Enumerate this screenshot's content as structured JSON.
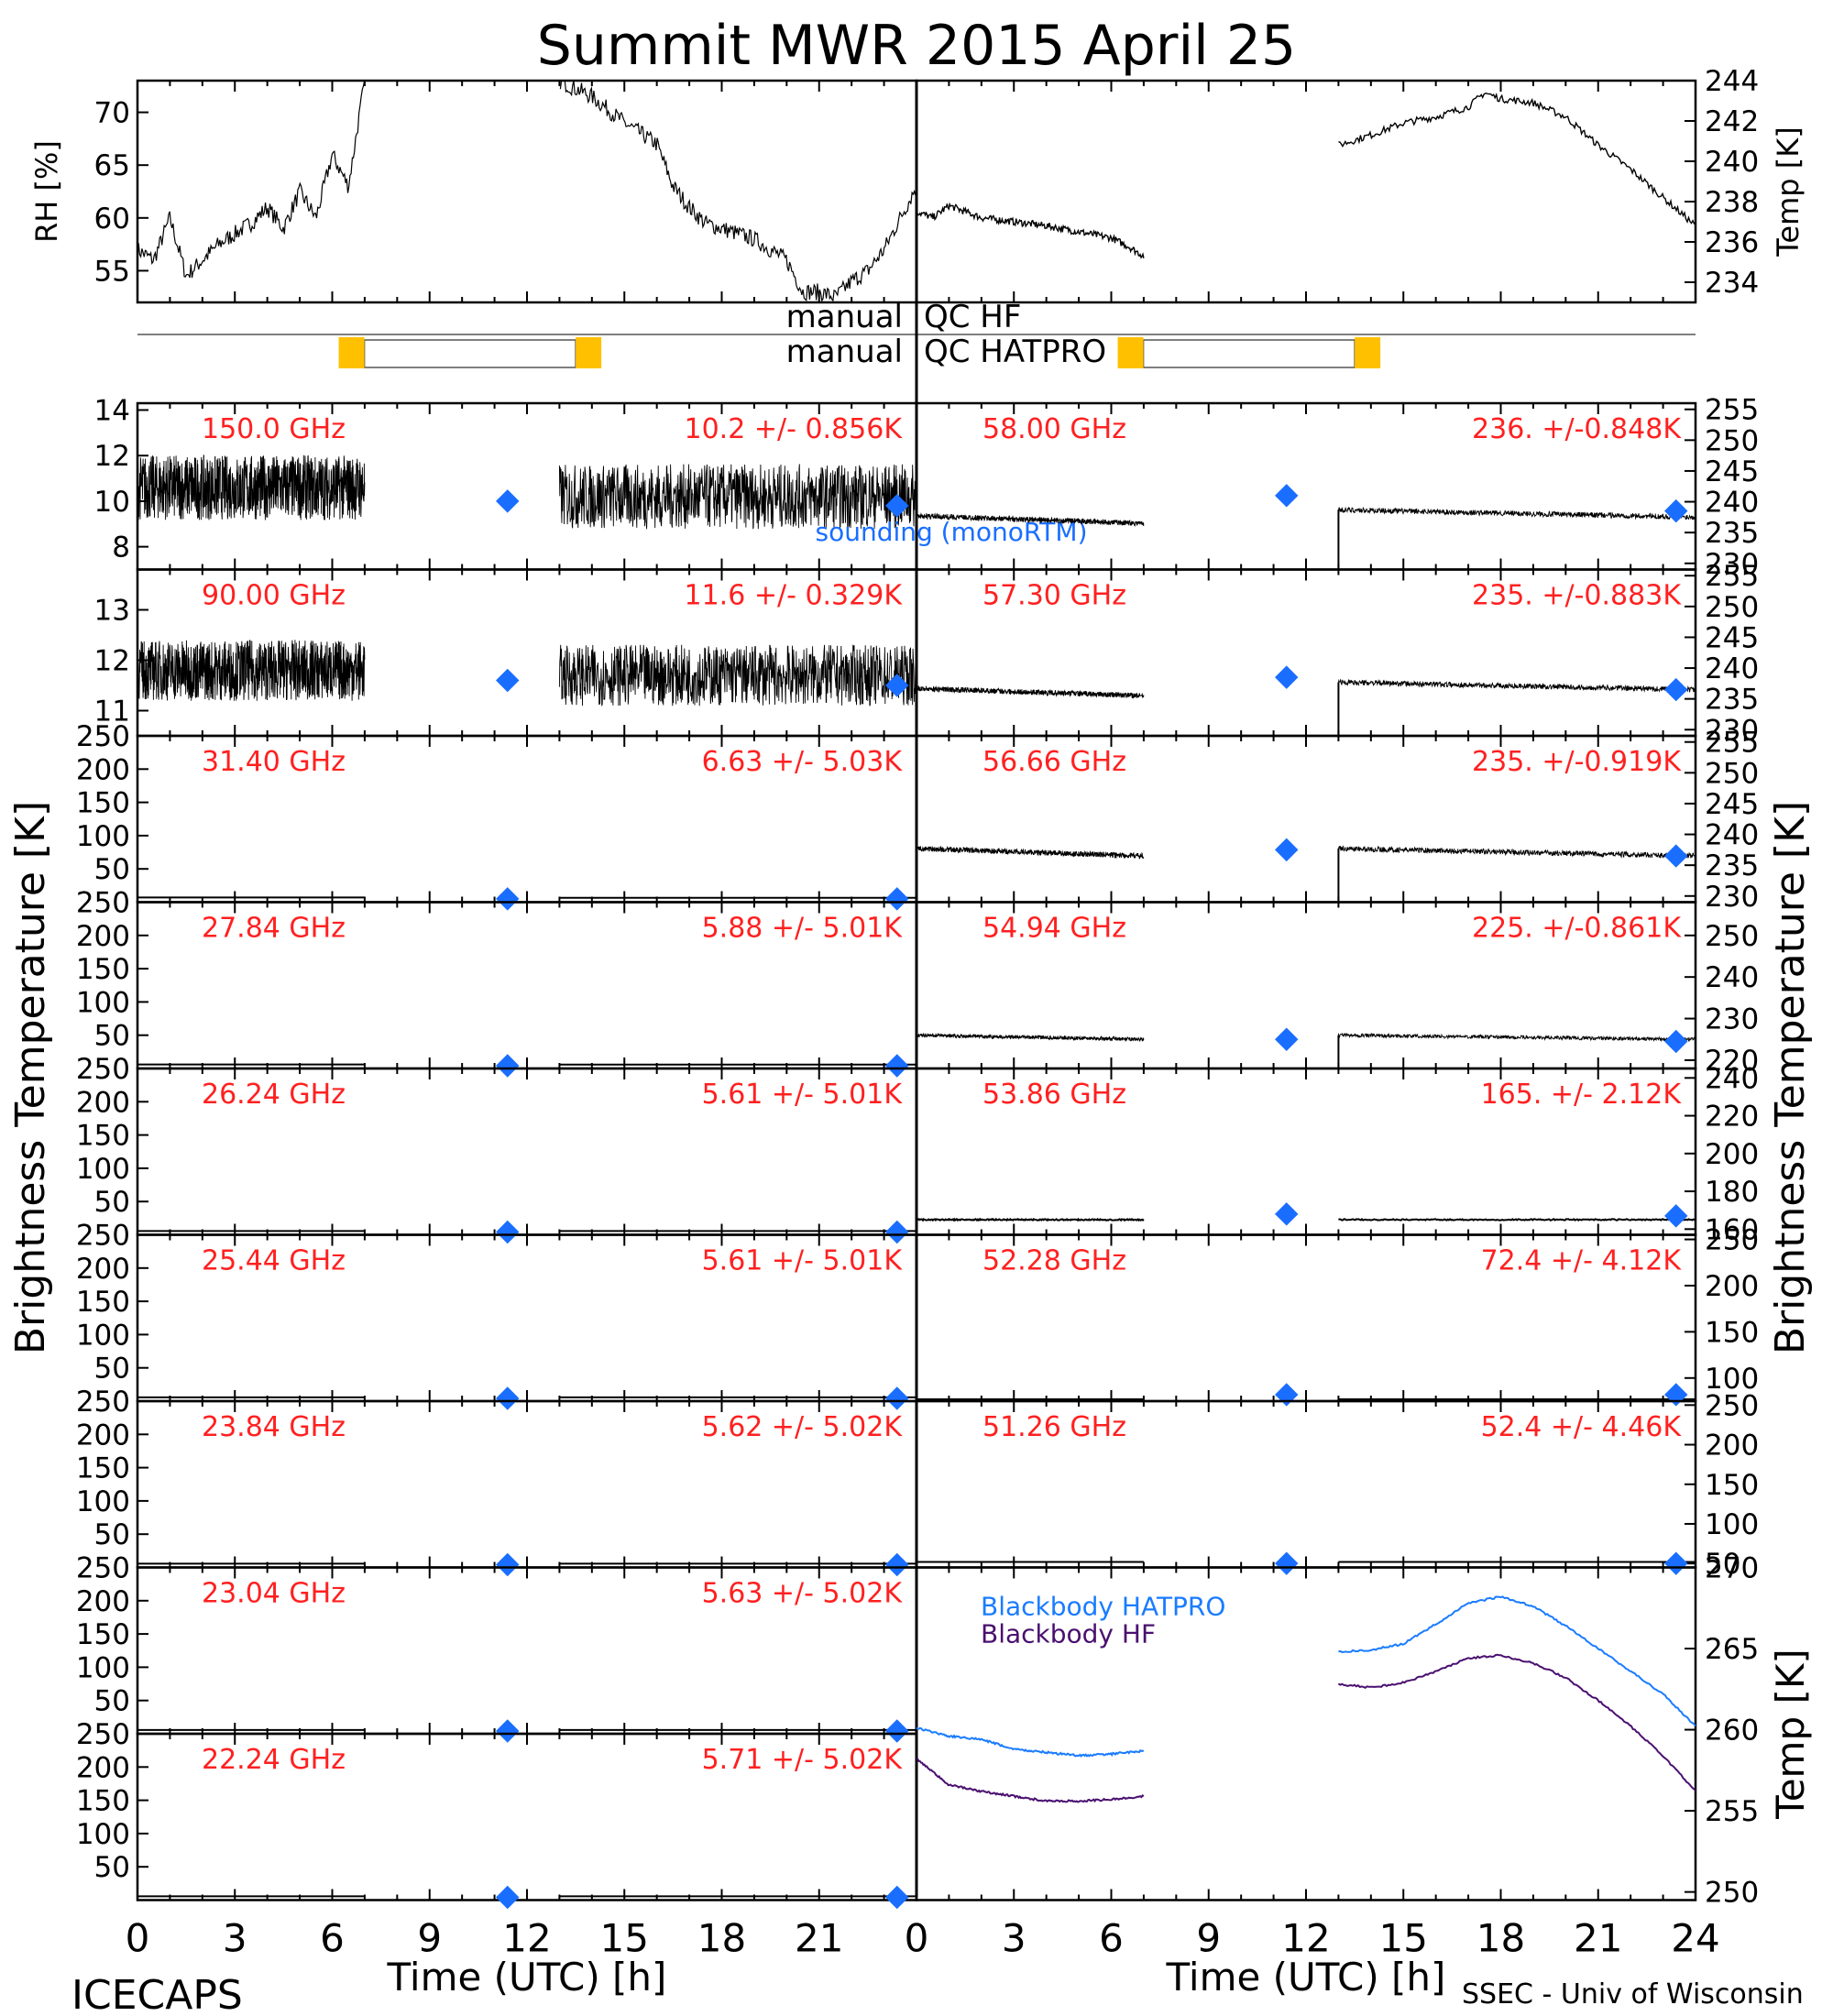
{
  "title": "Summit MWR 2015 April 25",
  "footer": {
    "left": "ICECAPS",
    "right": "SSEC - Univ of Wisconsin"
  },
  "colors": {
    "label_red": "#ff2020",
    "sounding_blue": "#1a6eff",
    "bb_hatpro": "#1a7cff",
    "bb_hf": "#4a1070",
    "qc_orange": "#ffc000",
    "trace": "#000000"
  },
  "chart_data": [
    {
      "id": "met_rh",
      "type": "line",
      "ylabel": "RH [%]",
      "ylim": [
        52,
        73
      ],
      "yticks": [
        55,
        60,
        65,
        70
      ],
      "xlim": [
        0,
        24
      ],
      "x": [
        0,
        0.5,
        1,
        1.5,
        2,
        2.5,
        3,
        3.5,
        4,
        4.5,
        5,
        5.5,
        6,
        6.5,
        7,
        13,
        14,
        15,
        16,
        16.5,
        17,
        17.5,
        18,
        19,
        20,
        20.5,
        21,
        21.5,
        22,
        22.5,
        23,
        23.5,
        24
      ],
      "y": [
        57,
        56,
        60,
        54.5,
        56,
        57.5,
        58.5,
        59.5,
        61,
        59,
        62.5,
        60,
        66,
        63,
        73,
        73,
        71.5,
        69,
        67,
        63,
        61,
        59.5,
        59,
        58,
        56,
        53,
        53,
        52.5,
        54,
        55,
        57,
        60,
        63
      ]
    },
    {
      "id": "met_temp",
      "type": "line",
      "ylabel": "Temp [K]",
      "ylim": [
        233,
        244
      ],
      "yticks": [
        234,
        236,
        238,
        240,
        242,
        244
      ],
      "xlim": [
        0,
        24
      ],
      "segments": [
        {
          "x": [
            0,
            0.5,
            1,
            2,
            3,
            4,
            5,
            6,
            6.5,
            7
          ],
          "y": [
            237.5,
            237.2,
            237.8,
            237.2,
            237,
            236.8,
            236.5,
            236.2,
            235.8,
            235.3
          ]
        },
        {
          "x": [
            13,
            14,
            15,
            16,
            17,
            17.5,
            18,
            19,
            20,
            21,
            22,
            23,
            24
          ],
          "y": [
            240.8,
            241.3,
            241.9,
            242.2,
            242.7,
            243.4,
            243.1,
            242.9,
            242.2,
            240.8,
            239.6,
            238.2,
            236.8
          ]
        }
      ]
    },
    {
      "id": "qc",
      "type": "timeline",
      "rows": [
        {
          "label": "manual QC HF",
          "flags": []
        },
        {
          "label": "manual QC HATPRO",
          "flags": [
            6.2,
            13.5
          ],
          "bar": [
            6.2,
            13.5
          ]
        }
      ]
    },
    {
      "id": "tb_left",
      "type": "line",
      "ylabel": "Brightness Temperature [K]",
      "xlabel": "Time (UTC) [h]",
      "xlim": [
        0,
        24
      ],
      "xticks": [
        0,
        3,
        6,
        9,
        12,
        15,
        18,
        21
      ],
      "gap": [
        7,
        13
      ],
      "soundings_x": [
        11.4,
        23.4
      ],
      "panels": [
        {
          "label": "150.0 GHz",
          "stats": "10.2 +/- 0.856K",
          "ylim": [
            7,
            14.3
          ],
          "yticks": [
            8,
            10,
            12,
            14
          ],
          "mean1": 10.6,
          "mean2": 10.2,
          "noise": 1.3,
          "sounding": [
            10.0,
            9.8
          ],
          "legend": "sounding (monoRTM)"
        },
        {
          "label": "90.00 GHz",
          "stats": "11.6 +/- 0.329K",
          "ylim": [
            10.5,
            13.8
          ],
          "yticks": [
            11,
            12,
            13
          ],
          "mean1": 11.8,
          "mean2": 11.7,
          "noise": 0.55,
          "sounding": [
            11.6,
            11.5
          ]
        },
        {
          "label": "31.40 GHz",
          "stats": "6.63 +/- 5.03K",
          "ylim": [
            0,
            250
          ],
          "yticks": [
            50,
            100,
            150,
            200,
            250
          ],
          "mean1": 7,
          "mean2": 6.6,
          "noise": 0,
          "sounding": [
            5,
            5
          ]
        },
        {
          "label": "27.84 GHz",
          "stats": "5.88 +/- 5.01K",
          "ylim": [
            0,
            250
          ],
          "yticks": [
            50,
            100,
            150,
            200,
            250
          ],
          "mean1": 6,
          "mean2": 5.9,
          "noise": 0,
          "sounding": [
            4,
            4
          ]
        },
        {
          "label": "26.24 GHz",
          "stats": "5.61 +/- 5.01K",
          "ylim": [
            0,
            250
          ],
          "yticks": [
            50,
            100,
            150,
            200,
            250
          ],
          "mean1": 5.6,
          "mean2": 5.6,
          "noise": 0,
          "sounding": [
            4,
            4
          ]
        },
        {
          "label": "25.44 GHz",
          "stats": "5.61 +/- 5.01K",
          "ylim": [
            0,
            250
          ],
          "yticks": [
            50,
            100,
            150,
            200,
            250
          ],
          "mean1": 5.6,
          "mean2": 5.6,
          "noise": 0,
          "sounding": [
            4,
            4
          ]
        },
        {
          "label": "23.84 GHz",
          "stats": "5.62 +/- 5.02K",
          "ylim": [
            0,
            250
          ],
          "yticks": [
            50,
            100,
            150,
            200,
            250
          ],
          "mean1": 5.6,
          "mean2": 5.6,
          "noise": 0,
          "sounding": [
            4,
            4
          ]
        },
        {
          "label": "23.04 GHz",
          "stats": "5.63 +/- 5.02K",
          "ylim": [
            0,
            250
          ],
          "yticks": [
            50,
            100,
            150,
            200,
            250
          ],
          "mean1": 5.6,
          "mean2": 5.6,
          "noise": 0,
          "sounding": [
            4,
            4
          ]
        },
        {
          "label": "22.24 GHz",
          "stats": "5.71 +/- 5.02K",
          "ylim": [
            0,
            250
          ],
          "yticks": [
            50,
            100,
            150,
            200,
            250
          ],
          "mean1": 5.7,
          "mean2": 5.7,
          "noise": 0,
          "sounding": [
            4,
            4
          ]
        }
      ]
    },
    {
      "id": "tb_right",
      "type": "line",
      "ylabel": "Brightness Temperature [K]",
      "xlabel": "Time (UTC) [h]",
      "xlim": [
        0,
        24
      ],
      "xticks": [
        0,
        3,
        6,
        9,
        12,
        15,
        18,
        21,
        24
      ],
      "gap": [
        7,
        13
      ],
      "soundings_x": [
        11.4,
        23.4
      ],
      "panels": [
        {
          "label": "58.00 GHz",
          "stats": "236. +/-0.848K",
          "ylim": [
            229,
            256
          ],
          "yticks": [
            230,
            235,
            240,
            245,
            250,
            255
          ],
          "mean1": 236.5,
          "mean2": 237.5,
          "drift": 1.2,
          "noise": 0.4,
          "sounding": [
            241,
            238.5
          ]
        },
        {
          "label": "57.30 GHz",
          "stats": "235. +/-0.883K",
          "ylim": [
            229,
            256
          ],
          "yticks": [
            230,
            235,
            240,
            245,
            250,
            255
          ],
          "mean1": 235.5,
          "mean2": 236.5,
          "drift": 1.2,
          "noise": 0.4,
          "sounding": [
            238.5,
            236.5
          ]
        },
        {
          "label": "56.66 GHz",
          "stats": "235. +/-0.919K",
          "ylim": [
            229,
            256
          ],
          "yticks": [
            230,
            235,
            240,
            245,
            250,
            255
          ],
          "mean1": 236.5,
          "mean2": 236.5,
          "drift": 1.2,
          "noise": 0.4,
          "sounding": [
            237.5,
            236.5
          ]
        },
        {
          "label": "54.94 GHz",
          "stats": "225. +/-0.861K",
          "ylim": [
            218,
            258
          ],
          "yticks": [
            220,
            230,
            240,
            250
          ],
          "mean1": 225,
          "mean2": 225,
          "drift": 1.0,
          "noise": 0.4,
          "sounding": [
            225,
            224.5
          ]
        },
        {
          "label": "53.86 GHz",
          "stats": "165. +/- 2.12K",
          "ylim": [
            157,
            245
          ],
          "yticks": [
            160,
            180,
            200,
            220,
            240
          ],
          "mean1": 165,
          "mean2": 165,
          "drift": 0,
          "noise": 0.3,
          "sounding": [
            168,
            167
          ]
        },
        {
          "label": "52.28 GHz",
          "stats": "72.4 +/- 4.12K",
          "ylim": [
            75,
            255
          ],
          "yticks": [
            100,
            150,
            200,
            250
          ],
          "mean1": 72,
          "mean2": 72,
          "drift": 0,
          "noise": 0,
          "sounding": [
            82,
            82
          ]
        },
        {
          "label": "51.26 GHz",
          "stats": "52.4 +/- 4.46K",
          "ylim": [
            45,
            255
          ],
          "yticks": [
            50,
            100,
            150,
            200,
            250
          ],
          "mean1": 52,
          "mean2": 52,
          "drift": 0,
          "noise": 0,
          "sounding": [
            50,
            50
          ]
        }
      ]
    },
    {
      "id": "blackbody",
      "type": "line",
      "ylabel": "Temp [K]",
      "ylim": [
        249.5,
        270
      ],
      "yticks": [
        250,
        255,
        260,
        265,
        270
      ],
      "xlim": [
        0,
        24
      ],
      "series": [
        {
          "name": "Blackbody HATPRO",
          "segments": [
            {
              "x": [
                0,
                1,
                2,
                3,
                4,
                5,
                6,
                7
              ],
              "y": [
                260.1,
                259.6,
                259.4,
                258.8,
                258.6,
                258.4,
                258.5,
                258.7
              ]
            },
            {
              "x": [
                13,
                14,
                15,
                16,
                17,
                18,
                19,
                20,
                21,
                22,
                23,
                24
              ],
              "y": [
                264.8,
                264.9,
                265.3,
                266.5,
                267.8,
                268.2,
                267.6,
                266.4,
                265,
                263.6,
                262.2,
                260.2
              ]
            }
          ]
        },
        {
          "name": "Blackbody HF",
          "segments": [
            {
              "x": [
                0,
                1,
                2,
                3,
                4,
                5,
                6,
                7
              ],
              "y": [
                258.2,
                256.6,
                256.2,
                255.9,
                255.6,
                255.6,
                255.7,
                255.9
              ]
            },
            {
              "x": [
                13,
                14,
                15,
                16,
                17,
                18,
                19,
                20,
                21,
                22,
                23,
                24
              ],
              "y": [
                262.8,
                262.6,
                262.9,
                263.6,
                264.4,
                264.6,
                264.1,
                263.2,
                261.8,
                260.2,
                258.4,
                256.2
              ]
            }
          ]
        }
      ]
    }
  ]
}
